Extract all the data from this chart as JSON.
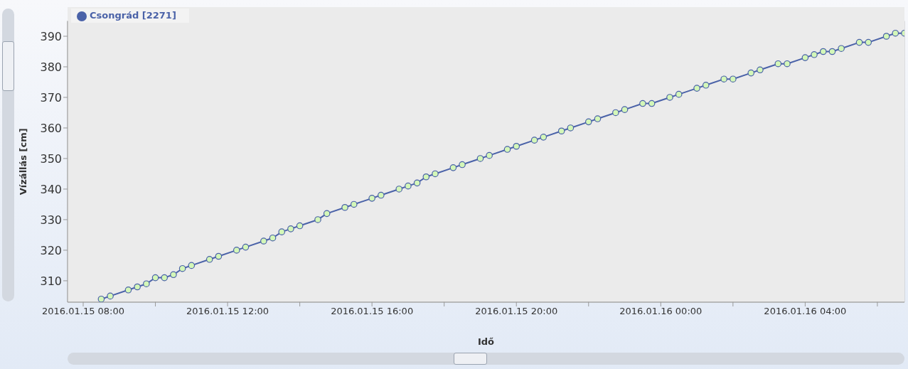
{
  "chart_data": {
    "type": "line",
    "xlabel": "Idő",
    "ylabel": "Vízállás [cm]",
    "x": [
      "2016-01-15T08:30",
      "2016-01-15T08:45",
      "2016-01-15T09:15",
      "2016-01-15T09:30",
      "2016-01-15T09:45",
      "2016-01-15T10:00",
      "2016-01-15T10:15",
      "2016-01-15T10:30",
      "2016-01-15T10:45",
      "2016-01-15T11:00",
      "2016-01-15T11:30",
      "2016-01-15T11:45",
      "2016-01-15T12:15",
      "2016-01-15T12:30",
      "2016-01-15T13:00",
      "2016-01-15T13:15",
      "2016-01-15T13:30",
      "2016-01-15T13:45",
      "2016-01-15T14:00",
      "2016-01-15T14:30",
      "2016-01-15T14:45",
      "2016-01-15T15:15",
      "2016-01-15T15:30",
      "2016-01-15T16:00",
      "2016-01-15T16:15",
      "2016-01-15T16:45",
      "2016-01-15T17:00",
      "2016-01-15T17:15",
      "2016-01-15T17:30",
      "2016-01-15T17:45",
      "2016-01-15T18:15",
      "2016-01-15T18:30",
      "2016-01-15T19:00",
      "2016-01-15T19:15",
      "2016-01-15T19:45",
      "2016-01-15T20:00",
      "2016-01-15T20:30",
      "2016-01-15T20:45",
      "2016-01-15T21:15",
      "2016-01-15T21:30",
      "2016-01-15T22:00",
      "2016-01-15T22:15",
      "2016-01-15T22:45",
      "2016-01-15T23:00",
      "2016-01-15T23:30",
      "2016-01-15T23:45",
      "2016-01-16T00:15",
      "2016-01-16T00:30",
      "2016-01-16T01:00",
      "2016-01-16T01:15",
      "2016-01-16T01:45",
      "2016-01-16T02:00",
      "2016-01-16T02:30",
      "2016-01-16T02:45",
      "2016-01-16T03:15",
      "2016-01-16T03:30",
      "2016-01-16T04:00",
      "2016-01-16T04:15",
      "2016-01-16T04:30",
      "2016-01-16T04:45",
      "2016-01-16T05:00",
      "2016-01-16T05:30",
      "2016-01-16T05:45",
      "2016-01-16T06:15",
      "2016-01-16T06:30",
      "2016-01-16T06:45"
    ],
    "series": [
      {
        "name": "Csongrád [2271]",
        "color": "#4a62a8",
        "values": [
          304,
          305,
          307,
          308,
          309,
          311,
          311,
          312,
          314,
          315,
          317,
          318,
          320,
          321,
          323,
          324,
          326,
          327,
          328,
          330,
          332,
          334,
          335,
          337,
          338,
          340,
          341,
          342,
          344,
          345,
          347,
          348,
          350,
          351,
          353,
          354,
          356,
          357,
          359,
          360,
          362,
          363,
          365,
          366,
          368,
          368,
          370,
          371,
          373,
          374,
          376,
          376,
          378,
          379,
          381,
          381,
          383,
          384,
          385,
          385,
          386,
          388,
          388,
          390,
          391,
          391
        ]
      }
    ],
    "xlim": [
      "2016-01-15T07:34",
      "2016-01-16T06:45"
    ],
    "xticks": [
      {
        "value": "2016-01-15T08:00",
        "label": "2016.01.15 08:00"
      },
      {
        "value": "2016-01-15T10:00",
        "label": null
      },
      {
        "value": "2016-01-15T12:00",
        "label": "2016.01.15 12:00"
      },
      {
        "value": "2016-01-15T14:00",
        "label": null
      },
      {
        "value": "2016-01-15T16:00",
        "label": "2016.01.15 16:00"
      },
      {
        "value": "2016-01-15T18:00",
        "label": null
      },
      {
        "value": "2016-01-15T20:00",
        "label": "2016.01.15 20:00"
      },
      {
        "value": "2016-01-15T22:00",
        "label": null
      },
      {
        "value": "2016-01-16T00:00",
        "label": "2016.01.16 00:00"
      },
      {
        "value": "2016-01-16T02:00",
        "label": null
      },
      {
        "value": "2016-01-16T04:00",
        "label": "2016.01.16 04:00"
      },
      {
        "value": "2016-01-16T06:00",
        "label": null
      }
    ],
    "ylim": [
      303,
      395
    ],
    "yticks": [
      310,
      320,
      330,
      340,
      350,
      360,
      370,
      380,
      390
    ],
    "grid": true,
    "legend": "top left",
    "marker": "circle",
    "line_style": "solid"
  }
}
